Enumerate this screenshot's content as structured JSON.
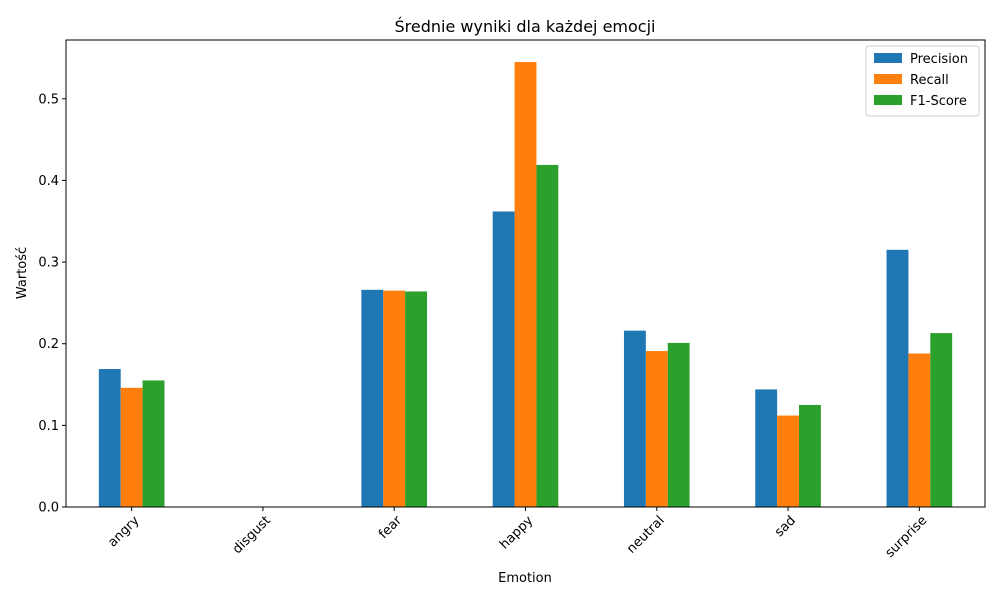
{
  "chart_data": {
    "type": "bar",
    "title": "Średnie wyniki dla każdej emocji",
    "xlabel": "Emotion",
    "ylabel": "Wartość",
    "categories": [
      "angry",
      "disgust",
      "fear",
      "happy",
      "neutral",
      "sad",
      "surprise"
    ],
    "series": [
      {
        "name": "Precision",
        "color": "#1f77b4",
        "values": [
          0.169,
          0.0,
          0.266,
          0.362,
          0.216,
          0.144,
          0.315
        ]
      },
      {
        "name": "Recall",
        "color": "#ff7f0e",
        "values": [
          0.146,
          0.0,
          0.265,
          0.545,
          0.191,
          0.112,
          0.188
        ]
      },
      {
        "name": "F1-Score",
        "color": "#2ca02c",
        "values": [
          0.155,
          0.0,
          0.264,
          0.419,
          0.201,
          0.125,
          0.213
        ]
      }
    ],
    "ylim": [
      0,
      0.572
    ],
    "yticks": [
      0.0,
      0.1,
      0.2,
      0.3,
      0.4,
      0.5
    ],
    "ytick_labels": [
      "0.0",
      "0.1",
      "0.2",
      "0.3",
      "0.4",
      "0.5"
    ],
    "grid": false,
    "legend_position": "top-right"
  }
}
